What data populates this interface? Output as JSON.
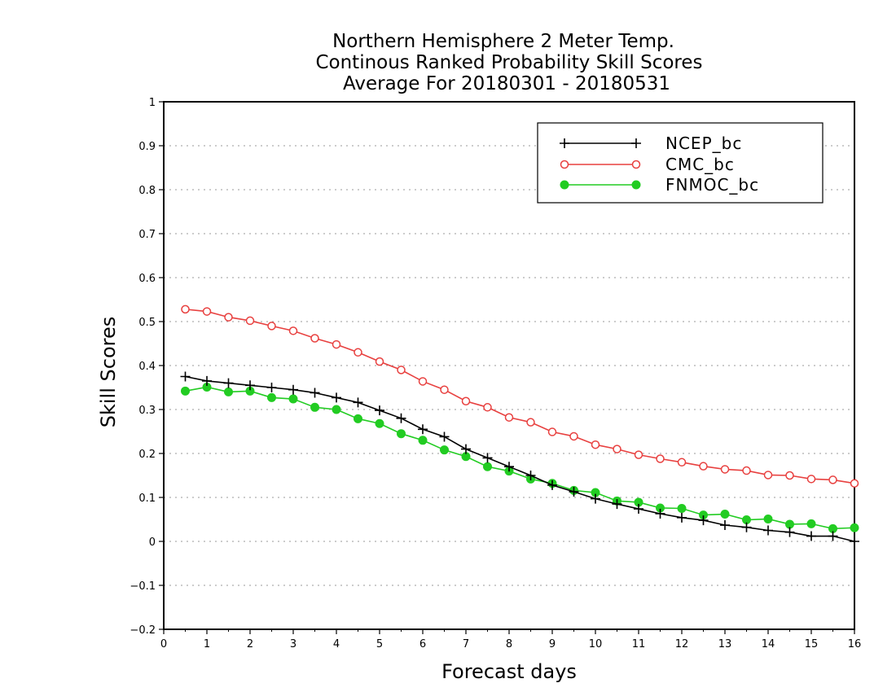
{
  "chart_data": {
    "type": "line",
    "title_lines": [
      "Northern Hemisphere 2 Meter Temp.",
      "Continous Ranked Probability Skill Scores",
      "Average For 20180301 - 20180531"
    ],
    "xlabel": "Forecast days",
    "ylabel": "Skill Scores",
    "xlim": [
      0,
      16
    ],
    "ylim": [
      -0.2,
      1
    ],
    "xticks": [
      "0",
      "1",
      "2",
      "3",
      "4",
      "5",
      "6",
      "7",
      "8",
      "9",
      "10",
      "11",
      "12",
      "13",
      "14",
      "15",
      "16"
    ],
    "yticks": [
      "−0.2",
      "−0.1",
      "0",
      "0.1",
      "0.2",
      "0.3",
      "0.4",
      "0.5",
      "0.6",
      "0.7",
      "0.8",
      "0.9",
      "1"
    ],
    "grid": "horizontal dotted",
    "legend_position": "top-right",
    "x": [
      0.5,
      1,
      1.5,
      2,
      2.5,
      3,
      3.5,
      4,
      4.5,
      5,
      5.5,
      6,
      6.5,
      7,
      7.5,
      8,
      8.5,
      9,
      9.5,
      10,
      10.5,
      11,
      11.5,
      12,
      12.5,
      13,
      13.5,
      14,
      14.5,
      15,
      15.5,
      16
    ],
    "series": [
      {
        "name": "NCEP_bc",
        "color": "#000000",
        "marker": "plus",
        "values": [
          0.375,
          0.365,
          0.36,
          0.355,
          0.35,
          0.345,
          0.338,
          0.327,
          0.316,
          0.298,
          0.28,
          0.255,
          0.238,
          0.21,
          0.19,
          0.17,
          0.15,
          0.128,
          0.113,
          0.097,
          0.085,
          0.074,
          0.063,
          0.054,
          0.048,
          0.037,
          0.032,
          0.025,
          0.021,
          0.012,
          0.012,
          0.0
        ]
      },
      {
        "name": "CMC_bc",
        "color": "#e8403f",
        "marker": "open-circle",
        "values": [
          0.528,
          0.523,
          0.51,
          0.502,
          0.49,
          0.479,
          0.462,
          0.448,
          0.43,
          0.409,
          0.39,
          0.364,
          0.345,
          0.319,
          0.305,
          0.282,
          0.271,
          0.249,
          0.239,
          0.22,
          0.21,
          0.197,
          0.188,
          0.18,
          0.171,
          0.164,
          0.161,
          0.151,
          0.15,
          0.142,
          0.14,
          0.132
        ]
      },
      {
        "name": "FNMOC_bc",
        "color": "#22cc22",
        "marker": "filled-circle",
        "values": [
          0.342,
          0.351,
          0.34,
          0.342,
          0.327,
          0.324,
          0.305,
          0.3,
          0.279,
          0.268,
          0.245,
          0.23,
          0.208,
          0.193,
          0.17,
          0.16,
          0.142,
          0.132,
          0.116,
          0.111,
          0.092,
          0.089,
          0.076,
          0.075,
          0.06,
          0.062,
          0.049,
          0.051,
          0.039,
          0.04,
          0.029,
          0.031
        ]
      }
    ]
  }
}
